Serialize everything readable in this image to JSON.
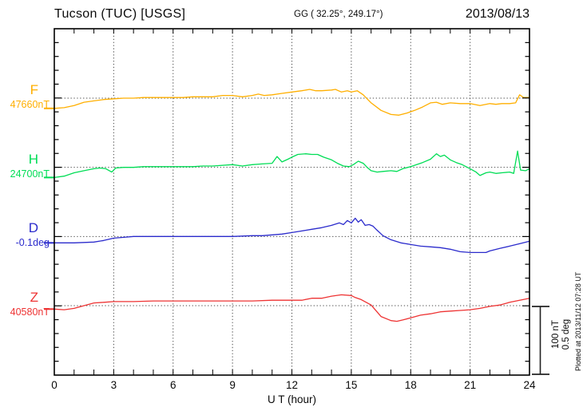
{
  "header": {
    "station": "Tucson (TUC)  [USGS]",
    "coords": "GG ( 32.25°, 249.17°)",
    "date": "2013/08/13"
  },
  "footer": {
    "plotted_at": "Plotted at 2013/11/12 07:28 UT"
  },
  "chart_data": {
    "type": "line",
    "title": "Tucson (TUC) [USGS] magnetogram 2013/08/13",
    "x": {
      "label": "U T (hour)",
      "min": 0,
      "max": 24,
      "ticks": [
        0,
        3,
        6,
        9,
        12,
        15,
        18,
        21,
        24
      ],
      "minor_tick_every_hours": 1,
      "grid_every_hours": 3,
      "grid_style": "dotted"
    },
    "y": {
      "minor_tick_nT": 20,
      "baseline_spacing_nT": 100,
      "baselines_dotted": true
    },
    "scale_bar": {
      "labels": [
        "100 nT",
        "0.5 deg"
      ],
      "nT_per_bar": 100,
      "deg_per_bar": 0.5
    },
    "series": [
      {
        "id": "F",
        "label": "F",
        "baseline_value": "47660nT",
        "unit": "nT",
        "color": "#ffaf00",
        "points": [
          [
            0,
            -15
          ],
          [
            0.5,
            -14
          ],
          [
            1,
            -11
          ],
          [
            1.5,
            -6
          ],
          [
            2,
            -4
          ],
          [
            2.5,
            -2
          ],
          [
            3,
            -1
          ],
          [
            3.5,
            0
          ],
          [
            4,
            0
          ],
          [
            4.5,
            1
          ],
          [
            5,
            1
          ],
          [
            6,
            1
          ],
          [
            6.5,
            1
          ],
          [
            7,
            2
          ],
          [
            8,
            2
          ],
          [
            8.5,
            4
          ],
          [
            9,
            4
          ],
          [
            9.5,
            2
          ],
          [
            10,
            4
          ],
          [
            10.3,
            6
          ],
          [
            10.6,
            4
          ],
          [
            11,
            5
          ],
          [
            11.5,
            7
          ],
          [
            12,
            9
          ],
          [
            12.5,
            11
          ],
          [
            12.9,
            13
          ],
          [
            13.2,
            11
          ],
          [
            13.5,
            11
          ],
          [
            14,
            12
          ],
          [
            14.2,
            13
          ],
          [
            14.5,
            9
          ],
          [
            14.8,
            11
          ],
          [
            15,
            9
          ],
          [
            15.3,
            11
          ],
          [
            15.6,
            5
          ],
          [
            16,
            -7
          ],
          [
            16.5,
            -18
          ],
          [
            17,
            -24
          ],
          [
            17.4,
            -25
          ],
          [
            17.8,
            -22
          ],
          [
            18.2,
            -18
          ],
          [
            18.6,
            -13
          ],
          [
            19,
            -7
          ],
          [
            19.3,
            -6
          ],
          [
            19.6,
            -9
          ],
          [
            20,
            -7
          ],
          [
            20.5,
            -8
          ],
          [
            21,
            -8
          ],
          [
            21.5,
            -11
          ],
          [
            22,
            -8
          ],
          [
            22.3,
            -9
          ],
          [
            22.6,
            -8
          ],
          [
            23,
            -8
          ],
          [
            23.3,
            -7
          ],
          [
            23.5,
            5
          ],
          [
            23.7,
            1
          ],
          [
            24,
            1
          ]
        ]
      },
      {
        "id": "H",
        "label": "H",
        "baseline_value": "24700nT",
        "unit": "nT",
        "color": "#00dd55",
        "points": [
          [
            0,
            -15
          ],
          [
            0.5,
            -13
          ],
          [
            1,
            -8
          ],
          [
            1.5,
            -5
          ],
          [
            2,
            -2
          ],
          [
            2.3,
            -1
          ],
          [
            2.6,
            -2
          ],
          [
            2.9,
            -7
          ],
          [
            3.1,
            -1
          ],
          [
            3.5,
            0
          ],
          [
            4,
            0
          ],
          [
            4.5,
            1
          ],
          [
            5,
            1
          ],
          [
            6,
            1
          ],
          [
            7,
            1
          ],
          [
            7.5,
            2
          ],
          [
            8,
            2
          ],
          [
            9,
            4
          ],
          [
            9.5,
            2
          ],
          [
            10,
            4
          ],
          [
            10.5,
            5
          ],
          [
            11,
            6
          ],
          [
            11.25,
            16
          ],
          [
            11.5,
            8
          ],
          [
            11.8,
            12
          ],
          [
            12,
            15
          ],
          [
            12.3,
            19
          ],
          [
            12.7,
            20
          ],
          [
            13,
            19
          ],
          [
            13.3,
            19
          ],
          [
            13.6,
            15
          ],
          [
            14,
            11
          ],
          [
            14.3,
            6
          ],
          [
            14.6,
            2
          ],
          [
            14.9,
            1
          ],
          [
            15.1,
            4
          ],
          [
            15.35,
            9
          ],
          [
            15.6,
            6
          ],
          [
            15.8,
            0
          ],
          [
            16,
            -5
          ],
          [
            16.3,
            -7
          ],
          [
            16.6,
            -6
          ],
          [
            17,
            -5
          ],
          [
            17.3,
            -6
          ],
          [
            17.6,
            -2
          ],
          [
            18,
            1
          ],
          [
            18.3,
            4
          ],
          [
            18.6,
            7
          ],
          [
            19,
            12
          ],
          [
            19.3,
            20
          ],
          [
            19.5,
            16
          ],
          [
            19.7,
            18
          ],
          [
            20,
            11
          ],
          [
            20.3,
            7
          ],
          [
            20.6,
            4
          ],
          [
            21,
            -2
          ],
          [
            21.3,
            -7
          ],
          [
            21.5,
            -12
          ],
          [
            21.8,
            -8
          ],
          [
            22,
            -7
          ],
          [
            22.3,
            -9
          ],
          [
            22.6,
            -8
          ],
          [
            23,
            -7
          ],
          [
            23.2,
            -9
          ],
          [
            23.4,
            24
          ],
          [
            23.55,
            -4
          ],
          [
            23.8,
            -5
          ],
          [
            24,
            -2
          ]
        ]
      },
      {
        "id": "D",
        "label": "D",
        "baseline_value": "-0.1deg",
        "unit": "deg",
        "color": "#2b2bcc",
        "points": [
          [
            0,
            -0.047
          ],
          [
            1,
            -0.047
          ],
          [
            2,
            -0.041
          ],
          [
            2.5,
            -0.029
          ],
          [
            3,
            -0.012
          ],
          [
            3.5,
            -0.006
          ],
          [
            4,
            0
          ],
          [
            5,
            0
          ],
          [
            6,
            0
          ],
          [
            7,
            0
          ],
          [
            8,
            0
          ],
          [
            9,
            0
          ],
          [
            10,
            0.006
          ],
          [
            10.5,
            0.006
          ],
          [
            11,
            0.012
          ],
          [
            11.5,
            0.018
          ],
          [
            12,
            0.029
          ],
          [
            12.5,
            0.041
          ],
          [
            13,
            0.053
          ],
          [
            13.5,
            0.065
          ],
          [
            14,
            0.082
          ],
          [
            14.4,
            0.1
          ],
          [
            14.6,
            0.088
          ],
          [
            14.8,
            0.118
          ],
          [
            15,
            0.1
          ],
          [
            15.2,
            0.135
          ],
          [
            15.35,
            0.106
          ],
          [
            15.5,
            0.124
          ],
          [
            15.7,
            0.082
          ],
          [
            15.9,
            0.088
          ],
          [
            16.1,
            0.076
          ],
          [
            16.3,
            0.047
          ],
          [
            16.6,
            0.006
          ],
          [
            17,
            -0.024
          ],
          [
            17.5,
            -0.047
          ],
          [
            18,
            -0.059
          ],
          [
            18.5,
            -0.071
          ],
          [
            19,
            -0.076
          ],
          [
            19.5,
            -0.082
          ],
          [
            20,
            -0.094
          ],
          [
            20.5,
            -0.112
          ],
          [
            21,
            -0.118
          ],
          [
            21.5,
            -0.118
          ],
          [
            21.8,
            -0.118
          ],
          [
            22,
            -0.106
          ],
          [
            22.5,
            -0.088
          ],
          [
            23,
            -0.071
          ],
          [
            23.5,
            -0.053
          ],
          [
            24,
            -0.035
          ]
        ]
      },
      {
        "id": "Z",
        "label": "Z",
        "baseline_value": "40580nT",
        "unit": "nT",
        "color": "#ee3333",
        "points": [
          [
            0,
            -5
          ],
          [
            0.5,
            -6
          ],
          [
            1,
            -4
          ],
          [
            1.5,
            0
          ],
          [
            2,
            4
          ],
          [
            2.5,
            5
          ],
          [
            3,
            6
          ],
          [
            4,
            6
          ],
          [
            5,
            7
          ],
          [
            6,
            7
          ],
          [
            7,
            7
          ],
          [
            8,
            7
          ],
          [
            9,
            7
          ],
          [
            10,
            7
          ],
          [
            11,
            8
          ],
          [
            12,
            8
          ],
          [
            12.5,
            8
          ],
          [
            13,
            11
          ],
          [
            13.5,
            11
          ],
          [
            14,
            14
          ],
          [
            14.5,
            16
          ],
          [
            15,
            15
          ],
          [
            15.2,
            12
          ],
          [
            15.5,
            9
          ],
          [
            16,
            1
          ],
          [
            16.5,
            -16
          ],
          [
            17,
            -22
          ],
          [
            17.3,
            -23
          ],
          [
            17.6,
            -21
          ],
          [
            18,
            -18
          ],
          [
            18.5,
            -14
          ],
          [
            19,
            -12
          ],
          [
            19.5,
            -9
          ],
          [
            20,
            -8
          ],
          [
            20.5,
            -7
          ],
          [
            21,
            -6
          ],
          [
            21.5,
            -4
          ],
          [
            22,
            -1
          ],
          [
            22.5,
            1
          ],
          [
            23,
            5
          ],
          [
            23.5,
            8
          ],
          [
            24,
            11
          ]
        ]
      }
    ]
  }
}
